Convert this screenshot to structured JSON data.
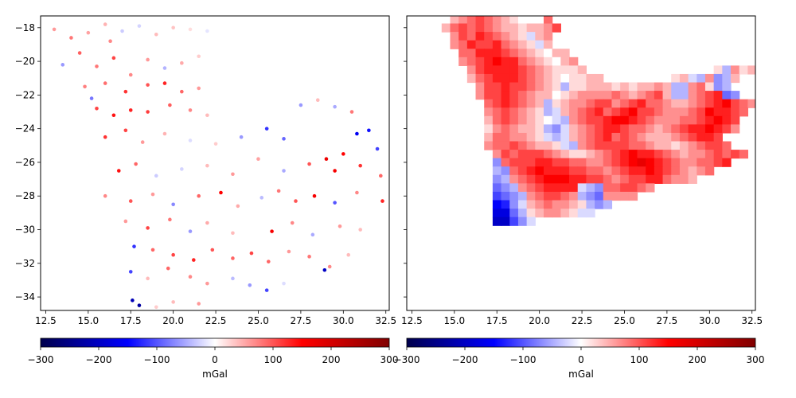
{
  "chart_data": [
    {
      "type": "scatter",
      "title": "",
      "xlabel": "",
      "ylabel": "",
      "xlim": [
        12.2,
        32.7
      ],
      "ylim": [
        -34.8,
        -17.3
      ],
      "xticks": [
        12.5,
        15.0,
        17.5,
        20.0,
        22.5,
        25.0,
        27.5,
        30.0,
        32.5
      ],
      "xtick_labels": [
        "12.5",
        "15.0",
        "17.5",
        "20.0",
        "22.5",
        "25.0",
        "27.5",
        "30.0",
        "32.5"
      ],
      "yticks": [
        -18,
        -20,
        -22,
        -24,
        -26,
        -28,
        -30,
        -32,
        -34
      ],
      "ytick_labels": [
        "−18",
        "−20",
        "−22",
        "−24",
        "−26",
        "−28",
        "−30",
        "−32",
        "−34"
      ],
      "colormap": "seismic",
      "clim": [
        -300,
        300
      ],
      "colorbar": {
        "label": "mGal",
        "ticks": [
          -300,
          -200,
          -100,
          0,
          100,
          200,
          300
        ],
        "tick_labels": [
          "−300",
          "−200",
          "−100",
          "0",
          "100",
          "200",
          "300"
        ],
        "orientation": "horizontal",
        "placement": "bottom"
      },
      "points": [
        [
          13.0,
          -18.1,
          60
        ],
        [
          14.0,
          -18.6,
          80
        ],
        [
          15.0,
          -18.3,
          55
        ],
        [
          16.0,
          -17.8,
          45
        ],
        [
          16.3,
          -18.8,
          70
        ],
        [
          17.0,
          -18.2,
          -30
        ],
        [
          18.0,
          -17.9,
          -25
        ],
        [
          19.0,
          -18.4,
          40
        ],
        [
          20.0,
          -18.0,
          35
        ],
        [
          21.0,
          -18.1,
          20
        ],
        [
          22.0,
          -18.2,
          -15
        ],
        [
          14.5,
          -19.5,
          95
        ],
        [
          15.5,
          -20.3,
          80
        ],
        [
          16.5,
          -19.8,
          110
        ],
        [
          17.5,
          -20.8,
          70
        ],
        [
          18.5,
          -19.9,
          60
        ],
        [
          19.5,
          -20.4,
          -45
        ],
        [
          20.5,
          -20.1,
          50
        ],
        [
          21.5,
          -19.7,
          30
        ],
        [
          13.5,
          -20.2,
          -60
        ],
        [
          14.8,
          -21.5,
          75
        ],
        [
          16.0,
          -21.3,
          85
        ],
        [
          17.2,
          -21.8,
          120
        ],
        [
          18.5,
          -21.4,
          100
        ],
        [
          19.5,
          -21.3,
          130
        ],
        [
          20.5,
          -21.8,
          90
        ],
        [
          21.5,
          -21.6,
          60
        ],
        [
          15.2,
          -22.2,
          -80
        ],
        [
          15.5,
          -22.8,
          110
        ],
        [
          16.5,
          -23.2,
          140
        ],
        [
          17.5,
          -22.9,
          130
        ],
        [
          18.5,
          -23.0,
          115
        ],
        [
          19.8,
          -22.6,
          95
        ],
        [
          21.0,
          -22.9,
          70
        ],
        [
          22.0,
          -23.2,
          40
        ],
        [
          16.0,
          -24.5,
          120
        ],
        [
          17.2,
          -24.1,
          110
        ],
        [
          18.2,
          -24.8,
          60
        ],
        [
          19.5,
          -24.3,
          45
        ],
        [
          21.0,
          -24.7,
          -20
        ],
        [
          22.5,
          -24.9,
          30
        ],
        [
          24.0,
          -24.5,
          -60
        ],
        [
          25.5,
          -24.0,
          -120
        ],
        [
          26.5,
          -24.6,
          -90
        ],
        [
          27.5,
          -22.6,
          -60
        ],
        [
          28.5,
          -22.3,
          40
        ],
        [
          29.5,
          -22.7,
          -50
        ],
        [
          30.5,
          -23.0,
          80
        ],
        [
          31.5,
          -24.1,
          -140
        ],
        [
          32.0,
          -25.2,
          -110
        ],
        [
          30.8,
          -24.3,
          -160
        ],
        [
          16.8,
          -26.5,
          140
        ],
        [
          17.8,
          -26.1,
          90
        ],
        [
          19.0,
          -26.8,
          -30
        ],
        [
          20.5,
          -26.4,
          -25
        ],
        [
          22.0,
          -26.2,
          40
        ],
        [
          23.5,
          -26.7,
          60
        ],
        [
          25.0,
          -25.8,
          55
        ],
        [
          26.5,
          -26.5,
          -50
        ],
        [
          28.0,
          -26.1,
          100
        ],
        [
          29.0,
          -25.8,
          170
        ],
        [
          29.5,
          -26.5,
          160
        ],
        [
          30.0,
          -25.5,
          150
        ],
        [
          31.0,
          -26.2,
          120
        ],
        [
          32.2,
          -26.8,
          90
        ],
        [
          16.0,
          -28.0,
          70
        ],
        [
          17.5,
          -28.3,
          100
        ],
        [
          18.8,
          -27.9,
          60
        ],
        [
          20.0,
          -28.5,
          -70
        ],
        [
          21.5,
          -28.0,
          90
        ],
        [
          22.8,
          -27.8,
          150
        ],
        [
          23.8,
          -28.6,
          50
        ],
        [
          25.2,
          -28.1,
          -40
        ],
        [
          26.2,
          -27.7,
          80
        ],
        [
          27.2,
          -28.3,
          100
        ],
        [
          28.3,
          -28.0,
          160
        ],
        [
          29.5,
          -28.4,
          -100
        ],
        [
          30.8,
          -27.8,
          70
        ],
        [
          32.3,
          -28.3,
          130
        ],
        [
          17.2,
          -29.5,
          60
        ],
        [
          18.5,
          -29.9,
          110
        ],
        [
          19.8,
          -29.4,
          80
        ],
        [
          21.0,
          -30.1,
          -60
        ],
        [
          22.0,
          -29.6,
          50
        ],
        [
          23.5,
          -30.2,
          40
        ],
        [
          25.8,
          -30.1,
          160
        ],
        [
          27.0,
          -29.6,
          70
        ],
        [
          28.2,
          -30.3,
          -50
        ],
        [
          29.8,
          -29.8,
          60
        ],
        [
          31.0,
          -30.0,
          40
        ],
        [
          17.7,
          -31.0,
          -120
        ],
        [
          18.8,
          -31.2,
          90
        ],
        [
          20.0,
          -31.5,
          110
        ],
        [
          21.2,
          -31.8,
          130
        ],
        [
          22.3,
          -31.2,
          100
        ],
        [
          23.5,
          -31.7,
          90
        ],
        [
          24.6,
          -31.4,
          110
        ],
        [
          25.6,
          -31.9,
          90
        ],
        [
          26.8,
          -31.3,
          60
        ],
        [
          28.0,
          -31.6,
          80
        ],
        [
          29.2,
          -32.2,
          70
        ],
        [
          30.3,
          -31.5,
          40
        ],
        [
          17.5,
          -32.5,
          -110
        ],
        [
          18.5,
          -32.9,
          40
        ],
        [
          19.7,
          -32.3,
          90
        ],
        [
          21.0,
          -32.8,
          70
        ],
        [
          22.0,
          -33.2,
          60
        ],
        [
          23.5,
          -32.9,
          -40
        ],
        [
          24.5,
          -33.3,
          -60
        ],
        [
          25.5,
          -33.6,
          -110
        ],
        [
          26.5,
          -33.2,
          -20
        ],
        [
          28.9,
          -32.4,
          -200
        ],
        [
          17.6,
          -34.2,
          -210
        ],
        [
          18.0,
          -34.5,
          -230
        ],
        [
          19.0,
          -34.6,
          30
        ],
        [
          20.0,
          -34.3,
          40
        ],
        [
          21.5,
          -34.4,
          60
        ]
      ]
    },
    {
      "type": "heatmap",
      "title": "",
      "xlabel": "",
      "ylabel": "",
      "xlim": [
        12.2,
        32.7
      ],
      "ylim": [
        -34.8,
        -17.3
      ],
      "xticks": [
        12.5,
        15.0,
        17.5,
        20.0,
        22.5,
        25.0,
        27.5,
        30.0,
        32.5
      ],
      "xtick_labels": [
        "12.5",
        "15.0",
        "17.5",
        "20.0",
        "22.5",
        "25.0",
        "27.5",
        "30.0",
        "32.5"
      ],
      "yticks": [
        -18,
        -20,
        -22,
        -24,
        -26,
        -28,
        -30,
        -32,
        -34
      ],
      "colormap": "seismic",
      "clim": [
        -300,
        300
      ],
      "colorbar": {
        "label": "mGal",
        "ticks": [
          -300,
          -200,
          -100,
          0,
          100,
          200,
          300
        ],
        "tick_labels": [
          "−300",
          "−200",
          "−100",
          "0",
          "100",
          "200",
          "300"
        ],
        "orientation": "horizontal",
        "placement": "bottom"
      },
      "grid_x0": 12.5,
      "grid_y0": -17.5,
      "grid_step": 0.5,
      "rows": [
        ".....234543210..4.........................",
        "....24545432212235..........................",
        ".....354654321-123...........................",
        ".....3465564321-12...........................",
        "......4466654321022............................",
        "......34567664321023...........................",
        ".......35666654321112...............1-2312......",
        ".......2456665432101122........12-1-23-3-22.....",
        "........3556554321-2112221212232-2-2341-3-2.....",
        "........35565432201233334323452-2-23456-4-3.....",
        ".........4565432-2123345534564432234567543......",
        ".........3454321-2-12345645675543334576654......",
        ".........24543210-1-234556776543334456765.......",
        ".........1343221-2-3-123456654432345667653......",
        ".........2443321-1-2-1234564543222345665........",
        ".........344543221-1-2345555443221234554........",
        "..........354555432112345676654323345454........",
        "..........-3455566554433456787654334456.........",
        "..........-2-3456766655443456676543234..........",
        "..........-3-23456777665543455664332............",
        "..........-4-3-23456666-1-2-3445543.............",
        "..........-5-4-3-2345543-2-3-43333..............",
        "..........-7-6-3-12343321-2-3-2...................",
        "..........-8-8-4-2123321-1-1.....................",
        "..........-9-9-5-3-1......................"
      ]
    }
  ]
}
